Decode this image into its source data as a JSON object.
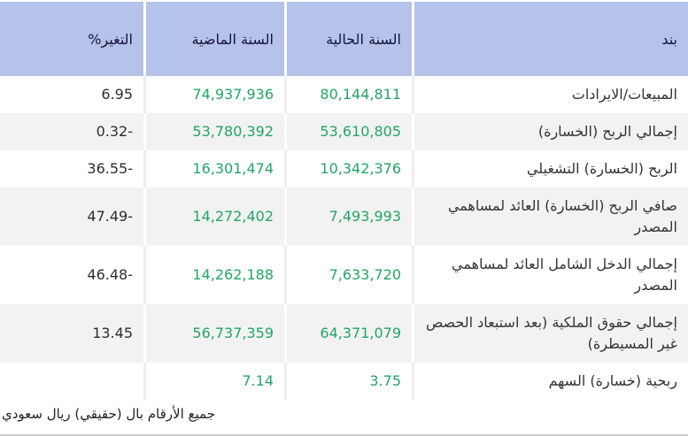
{
  "table": {
    "columns": [
      {
        "key": "item",
        "label": "بند"
      },
      {
        "key": "current",
        "label": "السنة الحالية"
      },
      {
        "key": "previous",
        "label": "السنة الماضية"
      },
      {
        "key": "change",
        "label": "التغير%"
      }
    ],
    "rows": [
      {
        "item": "المبيعات/الايرادات",
        "current": "80,144,811",
        "previous": "74,937,936",
        "change": "6.95"
      },
      {
        "item": "إجمالي الربح (الخسارة)",
        "current": "53,610,805",
        "previous": "53,780,392",
        "change": "0.32-"
      },
      {
        "item": "الربح (الخسارة) التشغيلي",
        "current": "10,342,376",
        "previous": "16,301,474",
        "change": "36.55-"
      },
      {
        "item": "صافي الربح (الخسارة) العائد لمساهمي المصدر",
        "current": "7,493,993",
        "previous": "14,272,402",
        "change": "47.49-"
      },
      {
        "item": "إجمالي الدخل الشامل العائد لمساهمي المصدر",
        "current": "7,633,720",
        "previous": "14,262,188",
        "change": "46.48-"
      },
      {
        "item": "إجمالي حقوق الملكية (بعد استبعاد الحصص غير المسيطرة)",
        "current": "64,371,079",
        "previous": "56,737,359",
        "change": "13.45"
      },
      {
        "item": "ربحية (خسارة) السهم",
        "current": "3.75",
        "previous": "7.14",
        "change": ""
      }
    ],
    "footer_note": "جميع الأرقام بال (حقيقي) ريال سعودي"
  },
  "colors": {
    "header_bg": "#b5c2e9",
    "header_text": "#14143c",
    "value_green": "#23a565",
    "item_text": "#333333",
    "alt_row_bg": "#f2f2f2",
    "bottom_border": "#cfcfcf"
  }
}
